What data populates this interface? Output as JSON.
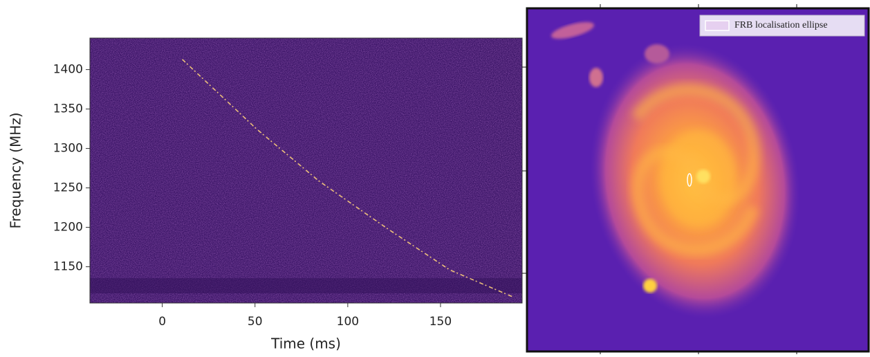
{
  "chart_data": [
    {
      "type": "line",
      "xlabel": "Time (ms)",
      "ylabel": "Frequency (MHz)",
      "x": [
        10.8,
        50.7,
        84.3,
        121.6,
        155,
        188.8
      ],
      "series": [
        {
          "color": "#ffd27a",
          "values": [
            1413,
            1325,
            1259,
            1198,
            1146,
            1112
          ]
        }
      ],
      "xlim": [
        -39,
        194
      ],
      "ylim": [
        1104,
        1440
      ],
      "xticks": [
        0,
        50,
        100,
        150
      ],
      "yticks": [
        1150,
        1200,
        1250,
        1300,
        1350,
        1400
      ]
    },
    {
      "type": "image",
      "series": [
        {
          "name": "FRB localisation ellipse",
          "color": "#ffffff"
        }
      ]
    }
  ]
}
